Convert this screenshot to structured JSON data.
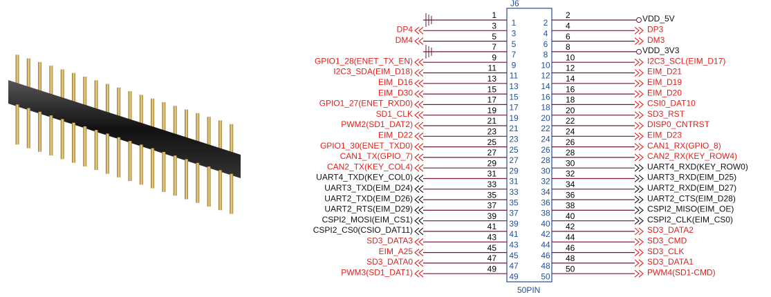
{
  "connector": {
    "reference": "J6",
    "package": "50PIN",
    "left_pins": [
      {
        "number": 1,
        "signal": null,
        "color": "#e0201b"
      },
      {
        "number": 3,
        "signal": "DP4",
        "color": "#e0201b"
      },
      {
        "number": 5,
        "signal": "DM4",
        "color": "#e0201b"
      },
      {
        "number": 7,
        "signal": null,
        "color": "#e0201b"
      },
      {
        "number": 9,
        "signal": "GPIO1_28(ENET_TX_EN)",
        "color": "#e0201b"
      },
      {
        "number": 11,
        "signal": "I2C3_SDA(EIM_D18)",
        "color": "#e0201b"
      },
      {
        "number": 13,
        "signal": "EIM_D16",
        "color": "#e0201b"
      },
      {
        "number": 15,
        "signal": "EIM_D30",
        "color": "#e0201b"
      },
      {
        "number": 17,
        "signal": "GPIO1_27(ENET_RXD0)",
        "color": "#e0201b"
      },
      {
        "number": 19,
        "signal": "SD1_CLK",
        "color": "#e0201b"
      },
      {
        "number": 21,
        "signal": "PWM2(SD1_DAT2)",
        "color": "#e0201b"
      },
      {
        "number": 23,
        "signal": "EIM_D22",
        "color": "#e0201b"
      },
      {
        "number": 25,
        "signal": "GPIO1_30(ENET_TXD0)",
        "color": "#e0201b"
      },
      {
        "number": 27,
        "signal": "CAN1_TX(GPIO_7)",
        "color": "#e0201b"
      },
      {
        "number": 29,
        "signal": "CAN2_TX(KEY_COL4)",
        "color": "#e0201b"
      },
      {
        "number": 31,
        "signal": "UART4_TXD(KEY_COL0)",
        "color": "#111111"
      },
      {
        "number": 33,
        "signal": "UART3_TXD(EIM_D24)",
        "color": "#111111"
      },
      {
        "number": 35,
        "signal": "UART2_TXD(EIM_D26)",
        "color": "#111111"
      },
      {
        "number": 37,
        "signal": "UART2_RTS(EIM_D29)",
        "color": "#111111"
      },
      {
        "number": 39,
        "signal": "CSPI2_MOSI(EIM_CS1)",
        "color": "#111111"
      },
      {
        "number": 41,
        "signal": "CSPI2_CS0(CSIO_DAT11)",
        "color": "#111111"
      },
      {
        "number": 43,
        "signal": "SD3_DATA3",
        "color": "#e0201b"
      },
      {
        "number": 45,
        "signal": "EIM_A25",
        "color": "#e0201b"
      },
      {
        "number": 47,
        "signal": "SD3_DATA0",
        "color": "#e0201b"
      },
      {
        "number": 49,
        "signal": "PWM3(SD1_DAT1)",
        "color": "#e0201b"
      }
    ],
    "right_pins": [
      {
        "number": 2,
        "signal": "VDD_5V",
        "color": "#111111"
      },
      {
        "number": 4,
        "signal": "DP3",
        "color": "#e0201b"
      },
      {
        "number": 6,
        "signal": "DM3",
        "color": "#e0201b"
      },
      {
        "number": 8,
        "signal": "VDD_3V3",
        "color": "#111111"
      },
      {
        "number": 10,
        "signal": "I2C3_SCL(EIM_D17)",
        "color": "#e0201b"
      },
      {
        "number": 12,
        "signal": "EIM_D21",
        "color": "#e0201b"
      },
      {
        "number": 14,
        "signal": "EIM_D19",
        "color": "#e0201b"
      },
      {
        "number": 16,
        "signal": "EIM_D20",
        "color": "#e0201b"
      },
      {
        "number": 18,
        "signal": "CSI0_DAT10",
        "color": "#e0201b"
      },
      {
        "number": 20,
        "signal": "SD3_RST",
        "color": "#e0201b"
      },
      {
        "number": 22,
        "signal": "DISP0_CNTRST",
        "color": "#e0201b"
      },
      {
        "number": 24,
        "signal": "EIM_D23",
        "color": "#e0201b"
      },
      {
        "number": 26,
        "signal": "CAN1_RX(GPIO_8)",
        "color": "#e0201b"
      },
      {
        "number": 28,
        "signal": "CAN2_RX(KEY_ROW4)",
        "color": "#e0201b"
      },
      {
        "number": 30,
        "signal": "UART4_RXD(KEY_ROW0)",
        "color": "#111111"
      },
      {
        "number": 32,
        "signal": "UART3_RXD(EIM_D25)",
        "color": "#111111"
      },
      {
        "number": 34,
        "signal": "UART2_RXD(EIM_D27)",
        "color": "#111111"
      },
      {
        "number": 36,
        "signal": "UART2_CTS(EIM_D28)",
        "color": "#111111"
      },
      {
        "number": 38,
        "signal": "CSPI2_MISO(EIM_OE)",
        "color": "#111111"
      },
      {
        "number": 40,
        "signal": "CSPI2_CLK(EIM_CS0)",
        "color": "#111111"
      },
      {
        "number": 42,
        "signal": "SD3_DATA2",
        "color": "#e0201b"
      },
      {
        "number": 44,
        "signal": "SD3_CMD",
        "color": "#e0201b"
      },
      {
        "number": 46,
        "signal": "SD3_CLK",
        "color": "#e0201b"
      },
      {
        "number": 48,
        "signal": "SD3_DATA1",
        "color": "#e0201b"
      },
      {
        "number": 50,
        "signal": "PWM4(SD1-CMD)",
        "color": "#e0201b"
      }
    ]
  }
}
